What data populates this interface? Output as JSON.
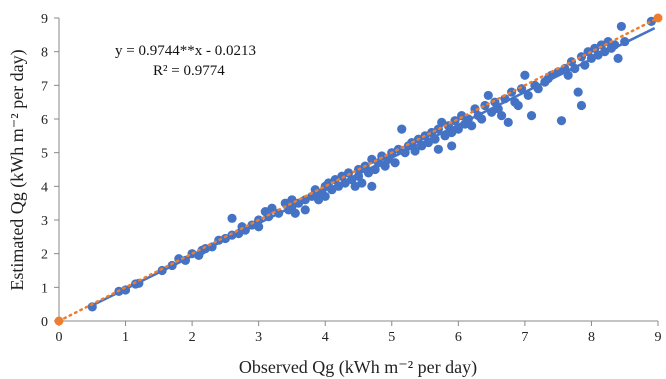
{
  "chart_data": {
    "type": "scatter",
    "xlabel": "Observed Qg (kWh m⁻² per day)",
    "ylabel": "Estimated Qg (kWh m⁻² per day)",
    "xlim": [
      0,
      9
    ],
    "ylim": [
      0,
      9
    ],
    "xticks": [
      "0",
      "1",
      "2",
      "3",
      "4",
      "5",
      "6",
      "7",
      "8",
      "9"
    ],
    "yticks": [
      "0",
      "1",
      "2",
      "3",
      "4",
      "5",
      "6",
      "7",
      "8",
      "9"
    ],
    "grid": false,
    "annotations": {
      "equation": "y = 0.9744**x - 0.0213",
      "r_squared": "R² = 0.9774"
    },
    "colors": {
      "points": "#4472C4",
      "trendline": "#4472C4",
      "one_to_one": "#ED7D31"
    },
    "trendline": {
      "slope": 0.9744,
      "intercept": -0.0213
    },
    "one_to_one": {
      "points": [
        [
          0,
          0
        ],
        [
          9,
          9
        ]
      ]
    },
    "points": [
      [
        0.5,
        0.42
      ],
      [
        0.9,
        0.88
      ],
      [
        1.0,
        0.92
      ],
      [
        1.15,
        1.1
      ],
      [
        1.2,
        1.12
      ],
      [
        1.55,
        1.5
      ],
      [
        1.7,
        1.65
      ],
      [
        1.8,
        1.85
      ],
      [
        1.9,
        1.8
      ],
      [
        2.0,
        2.0
      ],
      [
        2.1,
        1.95
      ],
      [
        2.15,
        2.1
      ],
      [
        2.2,
        2.15
      ],
      [
        2.3,
        2.2
      ],
      [
        2.4,
        2.4
      ],
      [
        2.5,
        2.45
      ],
      [
        2.6,
        2.55
      ],
      [
        2.6,
        3.05
      ],
      [
        2.7,
        2.6
      ],
      [
        2.75,
        2.8
      ],
      [
        2.8,
        2.7
      ],
      [
        2.9,
        2.85
      ],
      [
        3.0,
        2.8
      ],
      [
        3.0,
        3.0
      ],
      [
        3.1,
        3.25
      ],
      [
        3.15,
        3.1
      ],
      [
        3.2,
        3.35
      ],
      [
        3.3,
        3.2
      ],
      [
        3.4,
        3.5
      ],
      [
        3.45,
        3.3
      ],
      [
        3.5,
        3.6
      ],
      [
        3.5,
        3.4
      ],
      [
        3.55,
        3.2
      ],
      [
        3.6,
        3.5
      ],
      [
        3.7,
        3.6
      ],
      [
        3.7,
        3.3
      ],
      [
        3.8,
        3.7
      ],
      [
        3.85,
        3.9
      ],
      [
        3.9,
        3.6
      ],
      [
        3.95,
        3.8
      ],
      [
        4.0,
        4.0
      ],
      [
        4.0,
        3.7
      ],
      [
        4.05,
        4.1
      ],
      [
        4.1,
        3.9
      ],
      [
        4.15,
        4.2
      ],
      [
        4.2,
        4.0
      ],
      [
        4.25,
        4.3
      ],
      [
        4.3,
        4.1
      ],
      [
        4.35,
        4.4
      ],
      [
        4.4,
        4.2
      ],
      [
        4.45,
        4.0
      ],
      [
        4.5,
        4.5
      ],
      [
        4.5,
        4.3
      ],
      [
        4.55,
        4.1
      ],
      [
        4.6,
        4.6
      ],
      [
        4.65,
        4.4
      ],
      [
        4.7,
        4.0
      ],
      [
        4.7,
        4.8
      ],
      [
        4.75,
        4.5
      ],
      [
        4.8,
        4.7
      ],
      [
        4.85,
        4.9
      ],
      [
        4.9,
        4.6
      ],
      [
        4.95,
        4.8
      ],
      [
        5.0,
        5.0
      ],
      [
        5.05,
        4.7
      ],
      [
        5.1,
        5.1
      ],
      [
        5.15,
        5.7
      ],
      [
        5.2,
        5.0
      ],
      [
        5.25,
        5.2
      ],
      [
        5.3,
        5.3
      ],
      [
        5.35,
        5.05
      ],
      [
        5.4,
        5.4
      ],
      [
        5.45,
        5.2
      ],
      [
        5.5,
        5.5
      ],
      [
        5.55,
        5.3
      ],
      [
        5.6,
        5.6
      ],
      [
        5.65,
        5.4
      ],
      [
        5.7,
        5.7
      ],
      [
        5.7,
        5.1
      ],
      [
        5.75,
        5.9
      ],
      [
        5.8,
        5.5
      ],
      [
        5.85,
        5.8
      ],
      [
        5.9,
        5.6
      ],
      [
        5.9,
        5.2
      ],
      [
        5.95,
        5.95
      ],
      [
        6.0,
        5.7
      ],
      [
        6.05,
        6.1
      ],
      [
        6.1,
        5.85
      ],
      [
        6.15,
        6.0
      ],
      [
        6.2,
        5.8
      ],
      [
        6.25,
        6.3
      ],
      [
        6.3,
        6.1
      ],
      [
        6.35,
        6.0
      ],
      [
        6.4,
        6.4
      ],
      [
        6.45,
        6.7
      ],
      [
        6.5,
        6.2
      ],
      [
        6.55,
        6.5
      ],
      [
        6.6,
        6.3
      ],
      [
        6.65,
        6.1
      ],
      [
        6.7,
        6.6
      ],
      [
        6.75,
        5.9
      ],
      [
        6.8,
        6.8
      ],
      [
        6.85,
        6.5
      ],
      [
        6.9,
        6.4
      ],
      [
        6.95,
        6.9
      ],
      [
        7.0,
        7.3
      ],
      [
        7.05,
        6.7
      ],
      [
        7.1,
        6.1
      ],
      [
        7.15,
        7.0
      ],
      [
        7.2,
        6.9
      ],
      [
        7.3,
        7.1
      ],
      [
        7.35,
        7.2
      ],
      [
        7.4,
        7.3
      ],
      [
        7.5,
        7.4
      ],
      [
        7.55,
        5.95
      ],
      [
        7.6,
        7.5
      ],
      [
        7.65,
        7.3
      ],
      [
        7.7,
        7.7
      ],
      [
        7.75,
        7.5
      ],
      [
        7.8,
        6.8
      ],
      [
        7.85,
        6.4
      ],
      [
        7.85,
        7.85
      ],
      [
        7.9,
        7.6
      ],
      [
        7.95,
        8.0
      ],
      [
        8.0,
        7.8
      ],
      [
        8.05,
        8.1
      ],
      [
        8.1,
        7.9
      ],
      [
        8.15,
        8.2
      ],
      [
        8.2,
        8.0
      ],
      [
        8.25,
        8.3
      ],
      [
        8.3,
        8.1
      ],
      [
        8.35,
        8.2
      ],
      [
        8.4,
        7.8
      ],
      [
        8.45,
        8.75
      ],
      [
        8.5,
        8.3
      ],
      [
        8.9,
        8.9
      ]
    ]
  }
}
